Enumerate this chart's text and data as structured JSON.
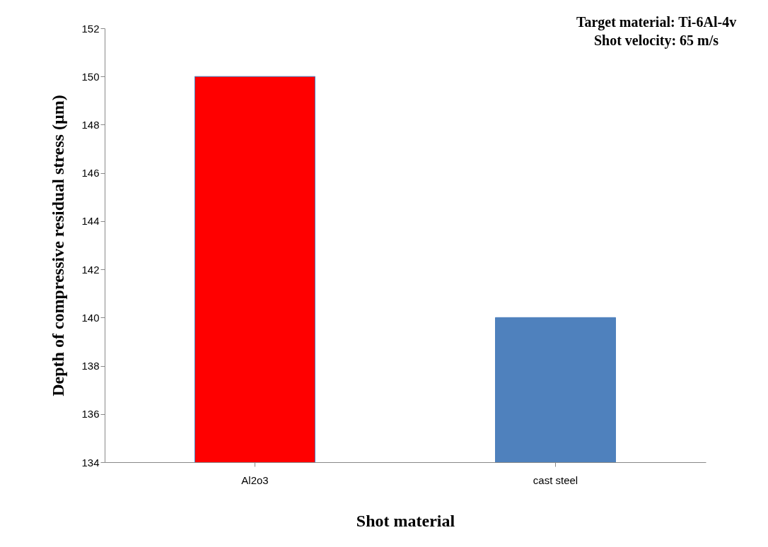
{
  "chart_data": {
    "type": "bar",
    "xlabel": "Shot  material",
    "ylabel": "Depth of compressive  residual stress (µm)",
    "categories": [
      "Al2o3",
      "cast steel"
    ],
    "values": [
      150,
      140
    ],
    "colors": [
      "#ff0000",
      "#4f81bd"
    ],
    "ylim": [
      134,
      152
    ],
    "yticks": [
      134,
      136,
      138,
      140,
      142,
      144,
      146,
      148,
      150,
      152
    ],
    "annotations": [
      "Target material: Ti-6Al-4v",
      "Shot velocity: 65 m/s"
    ]
  }
}
